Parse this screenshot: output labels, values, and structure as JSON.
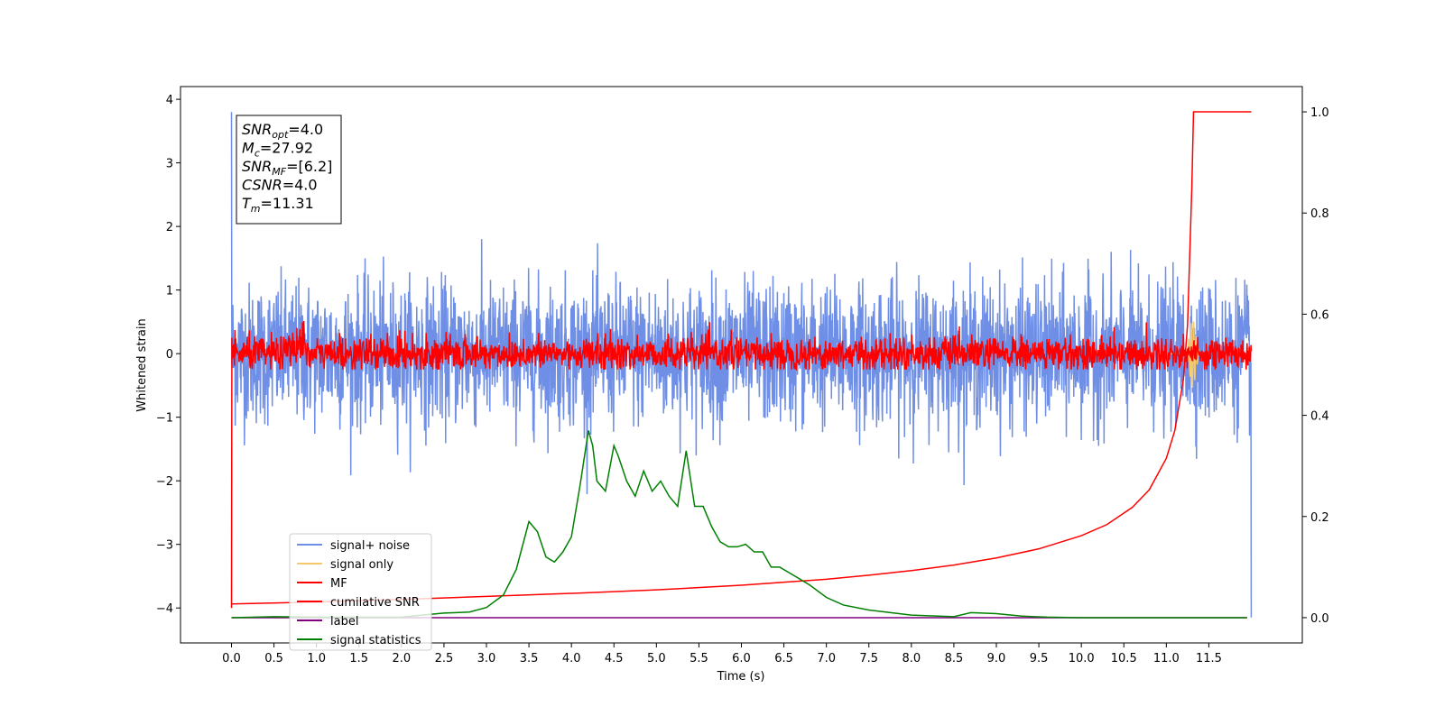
{
  "chart_data": {
    "type": "line",
    "xlabel": "Time (s)",
    "ylabel": "Whitened strain",
    "xlim": [
      -0.6,
      12.6
    ],
    "ylim": [
      -4.55,
      4.2
    ],
    "ylim_right": [
      -0.05,
      1.05
    ],
    "x_ticks": [
      0.0,
      0.5,
      1.0,
      1.5,
      2.0,
      2.5,
      3.0,
      3.5,
      4.0,
      4.5,
      5.0,
      5.5,
      6.0,
      6.5,
      7.0,
      7.5,
      8.0,
      8.5,
      9.0,
      9.5,
      10.0,
      10.5,
      11.0,
      11.5
    ],
    "x_tick_labels": [
      "0.0",
      "0.5",
      "1.0",
      "1.5",
      "2.0",
      "2.5",
      "3.0",
      "3.5",
      "4.0",
      "4.5",
      "5.0",
      "5.5",
      "6.0",
      "6.5",
      "7.0",
      "7.5",
      "8.0",
      "8.5",
      "9.0",
      "9.5",
      "10.0",
      "10.5",
      "11.0",
      "11.5"
    ],
    "y_ticks": [
      4,
      3,
      2,
      1,
      0,
      -1,
      -2,
      -3,
      -4
    ],
    "y_tick_labels": [
      "4",
      "3",
      "2",
      "1",
      "0",
      "−1",
      "−2",
      "−3",
      "−4"
    ],
    "y_right_ticks": [
      1.0,
      0.8,
      0.6,
      0.4,
      0.2,
      0.0
    ],
    "y_right_tick_labels": [
      "1.0",
      "0.8",
      "0.6",
      "0.4",
      "0.2",
      "0.0"
    ],
    "grid": false,
    "legend_position": "lower-left",
    "series": [
      {
        "name": "signal+ noise",
        "axis": "left",
        "color": "#6f8fe6",
        "noise_std": 0.55,
        "x_range": [
          0,
          11.999
        ],
        "start_value": 3.8,
        "end_value": -4.15
      },
      {
        "name": "signal only",
        "axis": "left",
        "color": "#f5c96b",
        "peak_time": 11.31,
        "peak_amplitude": 0.55
      },
      {
        "name": "MF",
        "axis": "left",
        "color": "#ff0000",
        "noise_std": 0.13,
        "x_range": [
          0,
          12.0
        ],
        "start_value": -4.0
      },
      {
        "name": "cumilative SNR",
        "axis": "right",
        "color": "#ff0000",
        "x": [
          0.0,
          1.0,
          2.0,
          3.0,
          4.0,
          5.0,
          6.0,
          7.0,
          7.5,
          8.0,
          8.5,
          9.0,
          9.5,
          10.0,
          10.3,
          10.6,
          10.8,
          11.0,
          11.1,
          11.2,
          11.25,
          11.3,
          11.32,
          12.0
        ],
        "values": [
          0.027,
          0.031,
          0.036,
          0.042,
          0.048,
          0.055,
          0.064,
          0.076,
          0.084,
          0.093,
          0.104,
          0.118,
          0.136,
          0.162,
          0.184,
          0.218,
          0.253,
          0.315,
          0.37,
          0.47,
          0.58,
          0.85,
          1.0,
          1.0
        ]
      },
      {
        "name": "label",
        "axis": "right",
        "color": "#800080",
        "x": [
          0.0,
          11.95
        ],
        "values": [
          0.0,
          0.0
        ]
      },
      {
        "name": "signal statistics",
        "axis": "right",
        "color": "#008000",
        "x": [
          0.0,
          0.5,
          1.0,
          1.5,
          2.0,
          2.3,
          2.5,
          2.8,
          3.0,
          3.2,
          3.35,
          3.5,
          3.6,
          3.7,
          3.8,
          3.9,
          4.0,
          4.1,
          4.2,
          4.25,
          4.3,
          4.4,
          4.5,
          4.55,
          4.65,
          4.75,
          4.85,
          4.95,
          5.05,
          5.15,
          5.25,
          5.35,
          5.45,
          5.55,
          5.65,
          5.75,
          5.85,
          5.95,
          6.05,
          6.15,
          6.25,
          6.35,
          6.45,
          6.6,
          6.8,
          7.0,
          7.2,
          7.5,
          8.0,
          8.5,
          8.7,
          9.0,
          9.3,
          9.6,
          10.0,
          11.0,
          11.95
        ],
        "values": [
          0.0,
          0.002,
          0.001,
          0.001,
          0.001,
          0.006,
          0.009,
          0.011,
          0.02,
          0.045,
          0.095,
          0.19,
          0.17,
          0.12,
          0.11,
          0.13,
          0.16,
          0.26,
          0.37,
          0.34,
          0.27,
          0.25,
          0.34,
          0.32,
          0.27,
          0.24,
          0.29,
          0.25,
          0.27,
          0.24,
          0.22,
          0.33,
          0.22,
          0.22,
          0.18,
          0.15,
          0.14,
          0.14,
          0.145,
          0.13,
          0.13,
          0.1,
          0.1,
          0.085,
          0.065,
          0.04,
          0.025,
          0.015,
          0.005,
          0.002,
          0.01,
          0.008,
          0.003,
          0.001,
          0.0,
          0.0,
          0.0
        ]
      }
    ]
  },
  "info_box": [
    {
      "base": "SNR",
      "sub": "opt",
      "value": "=4.0"
    },
    {
      "base": "M",
      "sub": "c",
      "value": "=27.92"
    },
    {
      "base": "SNR",
      "sub": "MF",
      "value": "=[6.2]"
    },
    {
      "base": "CSNR",
      "sub": "",
      "value": "=4.0"
    },
    {
      "base": "T",
      "sub": "m",
      "value": "=11.31"
    }
  ]
}
